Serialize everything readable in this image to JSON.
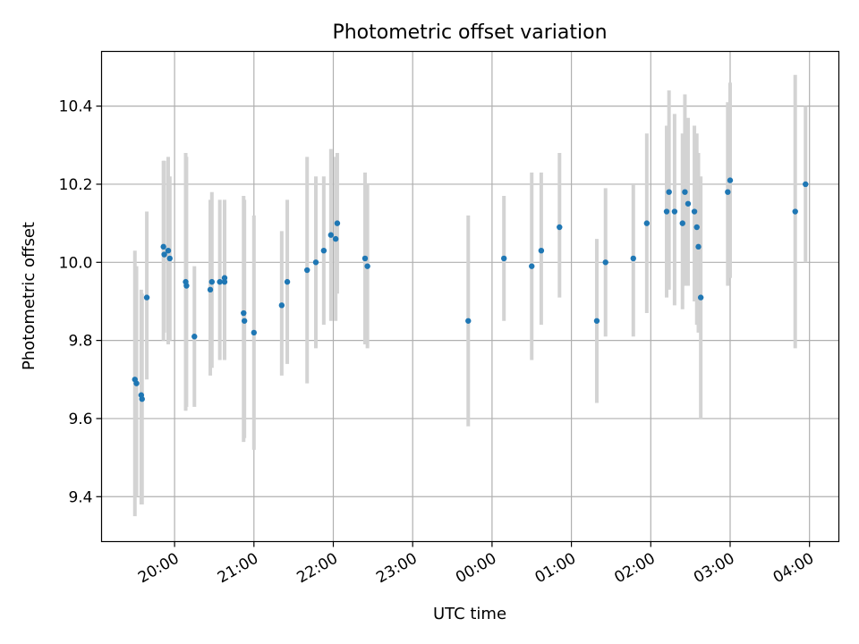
{
  "chart_data": {
    "type": "scatter",
    "title": "Photometric offset variation",
    "xlabel": "UTC time",
    "ylabel": "Photometric offset",
    "x_unit": "hours since 00:00 UTC (negative = previous evening)",
    "xlim": [
      -4.92,
      4.37
    ],
    "ylim": [
      9.285,
      10.54
    ],
    "x_ticks": [
      {
        "value": -4,
        "label": "20:00"
      },
      {
        "value": -3,
        "label": "21:00"
      },
      {
        "value": -2,
        "label": "22:00"
      },
      {
        "value": -1,
        "label": "23:00"
      },
      {
        "value": 0,
        "label": "00:00"
      },
      {
        "value": 1,
        "label": "01:00"
      },
      {
        "value": 2,
        "label": "02:00"
      },
      {
        "value": 3,
        "label": "03:00"
      },
      {
        "value": 4,
        "label": "04:00"
      }
    ],
    "y_ticks": [
      9.4,
      9.6,
      9.8,
      10.0,
      10.2,
      10.4
    ],
    "grid": true,
    "marker_color": "#1f77b4",
    "errorbar_color": "#d3d3d3",
    "points": [
      {
        "x": -4.5,
        "y": 9.7,
        "lo": 9.35,
        "hi": 10.03
      },
      {
        "x": -4.48,
        "y": 9.69,
        "lo": 9.4,
        "hi": 9.99
      },
      {
        "x": -4.42,
        "y": 9.66,
        "lo": 9.38,
        "hi": 9.93
      },
      {
        "x": -4.41,
        "y": 9.65,
        "lo": 9.38,
        "hi": 9.92
      },
      {
        "x": -4.35,
        "y": 9.91,
        "lo": 9.7,
        "hi": 10.13
      },
      {
        "x": -4.14,
        "y": 10.04,
        "lo": 9.8,
        "hi": 10.26
      },
      {
        "x": -4.13,
        "y": 10.02,
        "lo": 9.82,
        "hi": 10.26
      },
      {
        "x": -4.08,
        "y": 10.03,
        "lo": 9.79,
        "hi": 10.27
      },
      {
        "x": -4.06,
        "y": 10.01,
        "lo": 9.8,
        "hi": 10.22
      },
      {
        "x": -3.86,
        "y": 9.95,
        "lo": 9.62,
        "hi": 10.28
      },
      {
        "x": -3.85,
        "y": 9.94,
        "lo": 9.63,
        "hi": 10.27
      },
      {
        "x": -3.75,
        "y": 9.81,
        "lo": 9.63,
        "hi": 9.99
      },
      {
        "x": -3.55,
        "y": 9.93,
        "lo": 9.71,
        "hi": 10.16
      },
      {
        "x": -3.53,
        "y": 9.95,
        "lo": 9.73,
        "hi": 10.18
      },
      {
        "x": -3.43,
        "y": 9.95,
        "lo": 9.75,
        "hi": 10.16
      },
      {
        "x": -3.37,
        "y": 9.96,
        "lo": 9.75,
        "hi": 10.16
      },
      {
        "x": -3.37,
        "y": 9.95,
        "lo": 9.76,
        "hi": 10.15
      },
      {
        "x": -3.13,
        "y": 9.87,
        "lo": 9.54,
        "hi": 10.17
      },
      {
        "x": -3.12,
        "y": 9.85,
        "lo": 9.55,
        "hi": 10.16
      },
      {
        "x": -3.0,
        "y": 9.82,
        "lo": 9.52,
        "hi": 10.12
      },
      {
        "x": -2.65,
        "y": 9.89,
        "lo": 9.71,
        "hi": 10.08
      },
      {
        "x": -2.58,
        "y": 9.95,
        "lo": 9.74,
        "hi": 10.16
      },
      {
        "x": -2.33,
        "y": 9.98,
        "lo": 9.69,
        "hi": 10.27
      },
      {
        "x": -2.22,
        "y": 10.0,
        "lo": 9.78,
        "hi": 10.22
      },
      {
        "x": -2.12,
        "y": 10.03,
        "lo": 9.84,
        "hi": 10.22
      },
      {
        "x": -2.03,
        "y": 10.07,
        "lo": 9.85,
        "hi": 10.29
      },
      {
        "x": -1.97,
        "y": 10.06,
        "lo": 9.85,
        "hi": 10.27
      },
      {
        "x": -1.95,
        "y": 10.1,
        "lo": 9.92,
        "hi": 10.28
      },
      {
        "x": -1.6,
        "y": 10.01,
        "lo": 9.79,
        "hi": 10.23
      },
      {
        "x": -1.57,
        "y": 9.99,
        "lo": 9.78,
        "hi": 10.2
      },
      {
        "x": -0.3,
        "y": 9.85,
        "lo": 9.58,
        "hi": 10.12
      },
      {
        "x": 0.15,
        "y": 10.01,
        "lo": 9.85,
        "hi": 10.17
      },
      {
        "x": 0.5,
        "y": 9.99,
        "lo": 9.75,
        "hi": 10.23
      },
      {
        "x": 0.62,
        "y": 10.03,
        "lo": 9.84,
        "hi": 10.23
      },
      {
        "x": 0.85,
        "y": 10.09,
        "lo": 9.91,
        "hi": 10.28
      },
      {
        "x": 1.32,
        "y": 9.85,
        "lo": 9.64,
        "hi": 10.06
      },
      {
        "x": 1.43,
        "y": 10.0,
        "lo": 9.81,
        "hi": 10.19
      },
      {
        "x": 1.78,
        "y": 10.01,
        "lo": 9.81,
        "hi": 10.2
      },
      {
        "x": 1.95,
        "y": 10.1,
        "lo": 9.87,
        "hi": 10.33
      },
      {
        "x": 2.2,
        "y": 10.13,
        "lo": 9.91,
        "hi": 10.35
      },
      {
        "x": 2.23,
        "y": 10.18,
        "lo": 9.93,
        "hi": 10.44
      },
      {
        "x": 2.3,
        "y": 10.13,
        "lo": 9.89,
        "hi": 10.38
      },
      {
        "x": 2.4,
        "y": 10.1,
        "lo": 9.88,
        "hi": 10.33
      },
      {
        "x": 2.43,
        "y": 10.18,
        "lo": 9.94,
        "hi": 10.43
      },
      {
        "x": 2.47,
        "y": 10.15,
        "lo": 9.94,
        "hi": 10.37
      },
      {
        "x": 2.55,
        "y": 10.13,
        "lo": 9.9,
        "hi": 10.35
      },
      {
        "x": 2.58,
        "y": 10.09,
        "lo": 9.84,
        "hi": 10.33
      },
      {
        "x": 2.6,
        "y": 10.04,
        "lo": 9.82,
        "hi": 10.28
      },
      {
        "x": 2.63,
        "y": 9.91,
        "lo": 9.6,
        "hi": 10.22
      },
      {
        "x": 2.97,
        "y": 10.18,
        "lo": 9.94,
        "hi": 10.41
      },
      {
        "x": 3.0,
        "y": 10.21,
        "lo": 9.96,
        "hi": 10.46
      },
      {
        "x": 3.82,
        "y": 10.13,
        "lo": 9.78,
        "hi": 10.48
      },
      {
        "x": 3.95,
        "y": 10.2,
        "lo": 10.0,
        "hi": 10.4
      }
    ]
  }
}
